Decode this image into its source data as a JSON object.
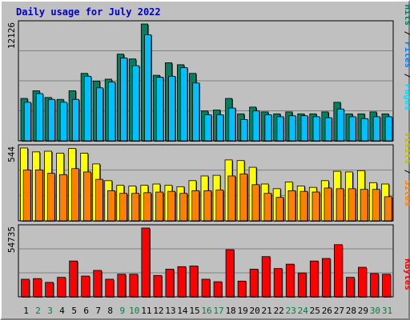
{
  "title": "Daily usage for July 2022",
  "colors": {
    "background": "#c0c0c0",
    "plot_background": "#c0c0c0",
    "title": "#0000c0",
    "hits": "#008060",
    "files": "#00c0ff",
    "pages": "#00e0ff",
    "visits": "#ffff00",
    "sites": "#ff8000",
    "kbytes": "#ff0000",
    "weekend_day_label": "#008040",
    "weekday_day_label": "#000000"
  },
  "chart_data": [
    {
      "type": "bar",
      "panel": "hits-files-pages",
      "categories": [
        "1",
        "2",
        "3",
        "4",
        "5",
        "6",
        "7",
        "8",
        "9",
        "10",
        "11",
        "12",
        "13",
        "14",
        "15",
        "16",
        "17",
        "18",
        "19",
        "20",
        "21",
        "22",
        "23",
        "24",
        "25",
        "26",
        "27",
        "28",
        "29",
        "30",
        "31"
      ],
      "ymax_label": "12126",
      "ylim": [
        0,
        12126
      ],
      "grid": true,
      "legend_labels": [
        "Pages",
        "Files",
        "Hits"
      ],
      "legend_placement": "right",
      "series": [
        {
          "name": "Hits",
          "values": [
            4400,
            5200,
            4500,
            4300,
            5200,
            7000,
            6200,
            6400,
            9000,
            8500,
            12126,
            6800,
            8100,
            7900,
            7000,
            3100,
            3200,
            4400,
            2800,
            3500,
            3000,
            2800,
            3000,
            2800,
            2800,
            3000,
            4000,
            2800,
            2800,
            3000,
            2800
          ]
        },
        {
          "name": "Files",
          "values": [
            4000,
            4900,
            4300,
            4000,
            4300,
            6700,
            5500,
            6100,
            8600,
            7800,
            11000,
            6600,
            6700,
            7600,
            6000,
            2700,
            2700,
            3400,
            2200,
            3100,
            2700,
            2500,
            2600,
            2600,
            2500,
            2400,
            3300,
            2500,
            2300,
            2500,
            2500
          ]
        },
        {
          "name": "Pages",
          "values": [
            4000,
            4900,
            4300,
            4000,
            4300,
            6700,
            5500,
            6100,
            8600,
            7800,
            11000,
            6600,
            6700,
            7600,
            6000,
            2700,
            2700,
            3400,
            2200,
            3100,
            2700,
            2500,
            2600,
            2600,
            2500,
            2400,
            3300,
            2500,
            2300,
            2500,
            2500
          ]
        }
      ]
    },
    {
      "type": "bar",
      "panel": "visits-sites",
      "categories": [
        "1",
        "2",
        "3",
        "4",
        "5",
        "6",
        "7",
        "8",
        "9",
        "10",
        "11",
        "12",
        "13",
        "14",
        "15",
        "16",
        "17",
        "18",
        "19",
        "20",
        "21",
        "22",
        "23",
        "24",
        "25",
        "26",
        "27",
        "28",
        "29",
        "30",
        "31"
      ],
      "ymax_label": "544",
      "ylim": [
        0,
        544
      ],
      "grid": true,
      "legend_labels": [
        "Sites",
        "Visits"
      ],
      "legend_placement": "right",
      "series": [
        {
          "name": "Visits",
          "values": [
            544,
            515,
            520,
            505,
            540,
            505,
            425,
            300,
            265,
            260,
            265,
            275,
            265,
            255,
            300,
            335,
            340,
            455,
            450,
            400,
            275,
            240,
            290,
            260,
            250,
            300,
            370,
            365,
            375,
            285,
            275
          ]
        },
        {
          "name": "Sites",
          "values": [
            380,
            380,
            355,
            345,
            390,
            365,
            310,
            225,
            205,
            205,
            210,
            215,
            220,
            205,
            225,
            225,
            230,
            335,
            350,
            270,
            205,
            175,
            225,
            220,
            215,
            245,
            240,
            240,
            235,
            235,
            180
          ]
        }
      ]
    },
    {
      "type": "bar",
      "panel": "kbytes",
      "categories": [
        "1",
        "2",
        "3",
        "4",
        "5",
        "6",
        "7",
        "8",
        "9",
        "10",
        "11",
        "12",
        "13",
        "14",
        "15",
        "16",
        "17",
        "18",
        "19",
        "20",
        "21",
        "22",
        "23",
        "24",
        "25",
        "26",
        "27",
        "28",
        "29",
        "30",
        "31"
      ],
      "ymax_label": "54735",
      "ylim": [
        0,
        54735
      ],
      "grid": true,
      "legend_labels": [
        "KBytes"
      ],
      "legend_placement": "right",
      "series": [
        {
          "name": "KBytes",
          "values": [
            14000,
            14500,
            11500,
            15500,
            28500,
            16500,
            21000,
            14000,
            18000,
            18000,
            54735,
            17000,
            22000,
            24000,
            24500,
            14000,
            12000,
            37500,
            12500,
            22000,
            32000,
            22500,
            26000,
            19000,
            28500,
            30500,
            41500,
            15500,
            23500,
            18500,
            18000
          ]
        }
      ]
    }
  ]
}
